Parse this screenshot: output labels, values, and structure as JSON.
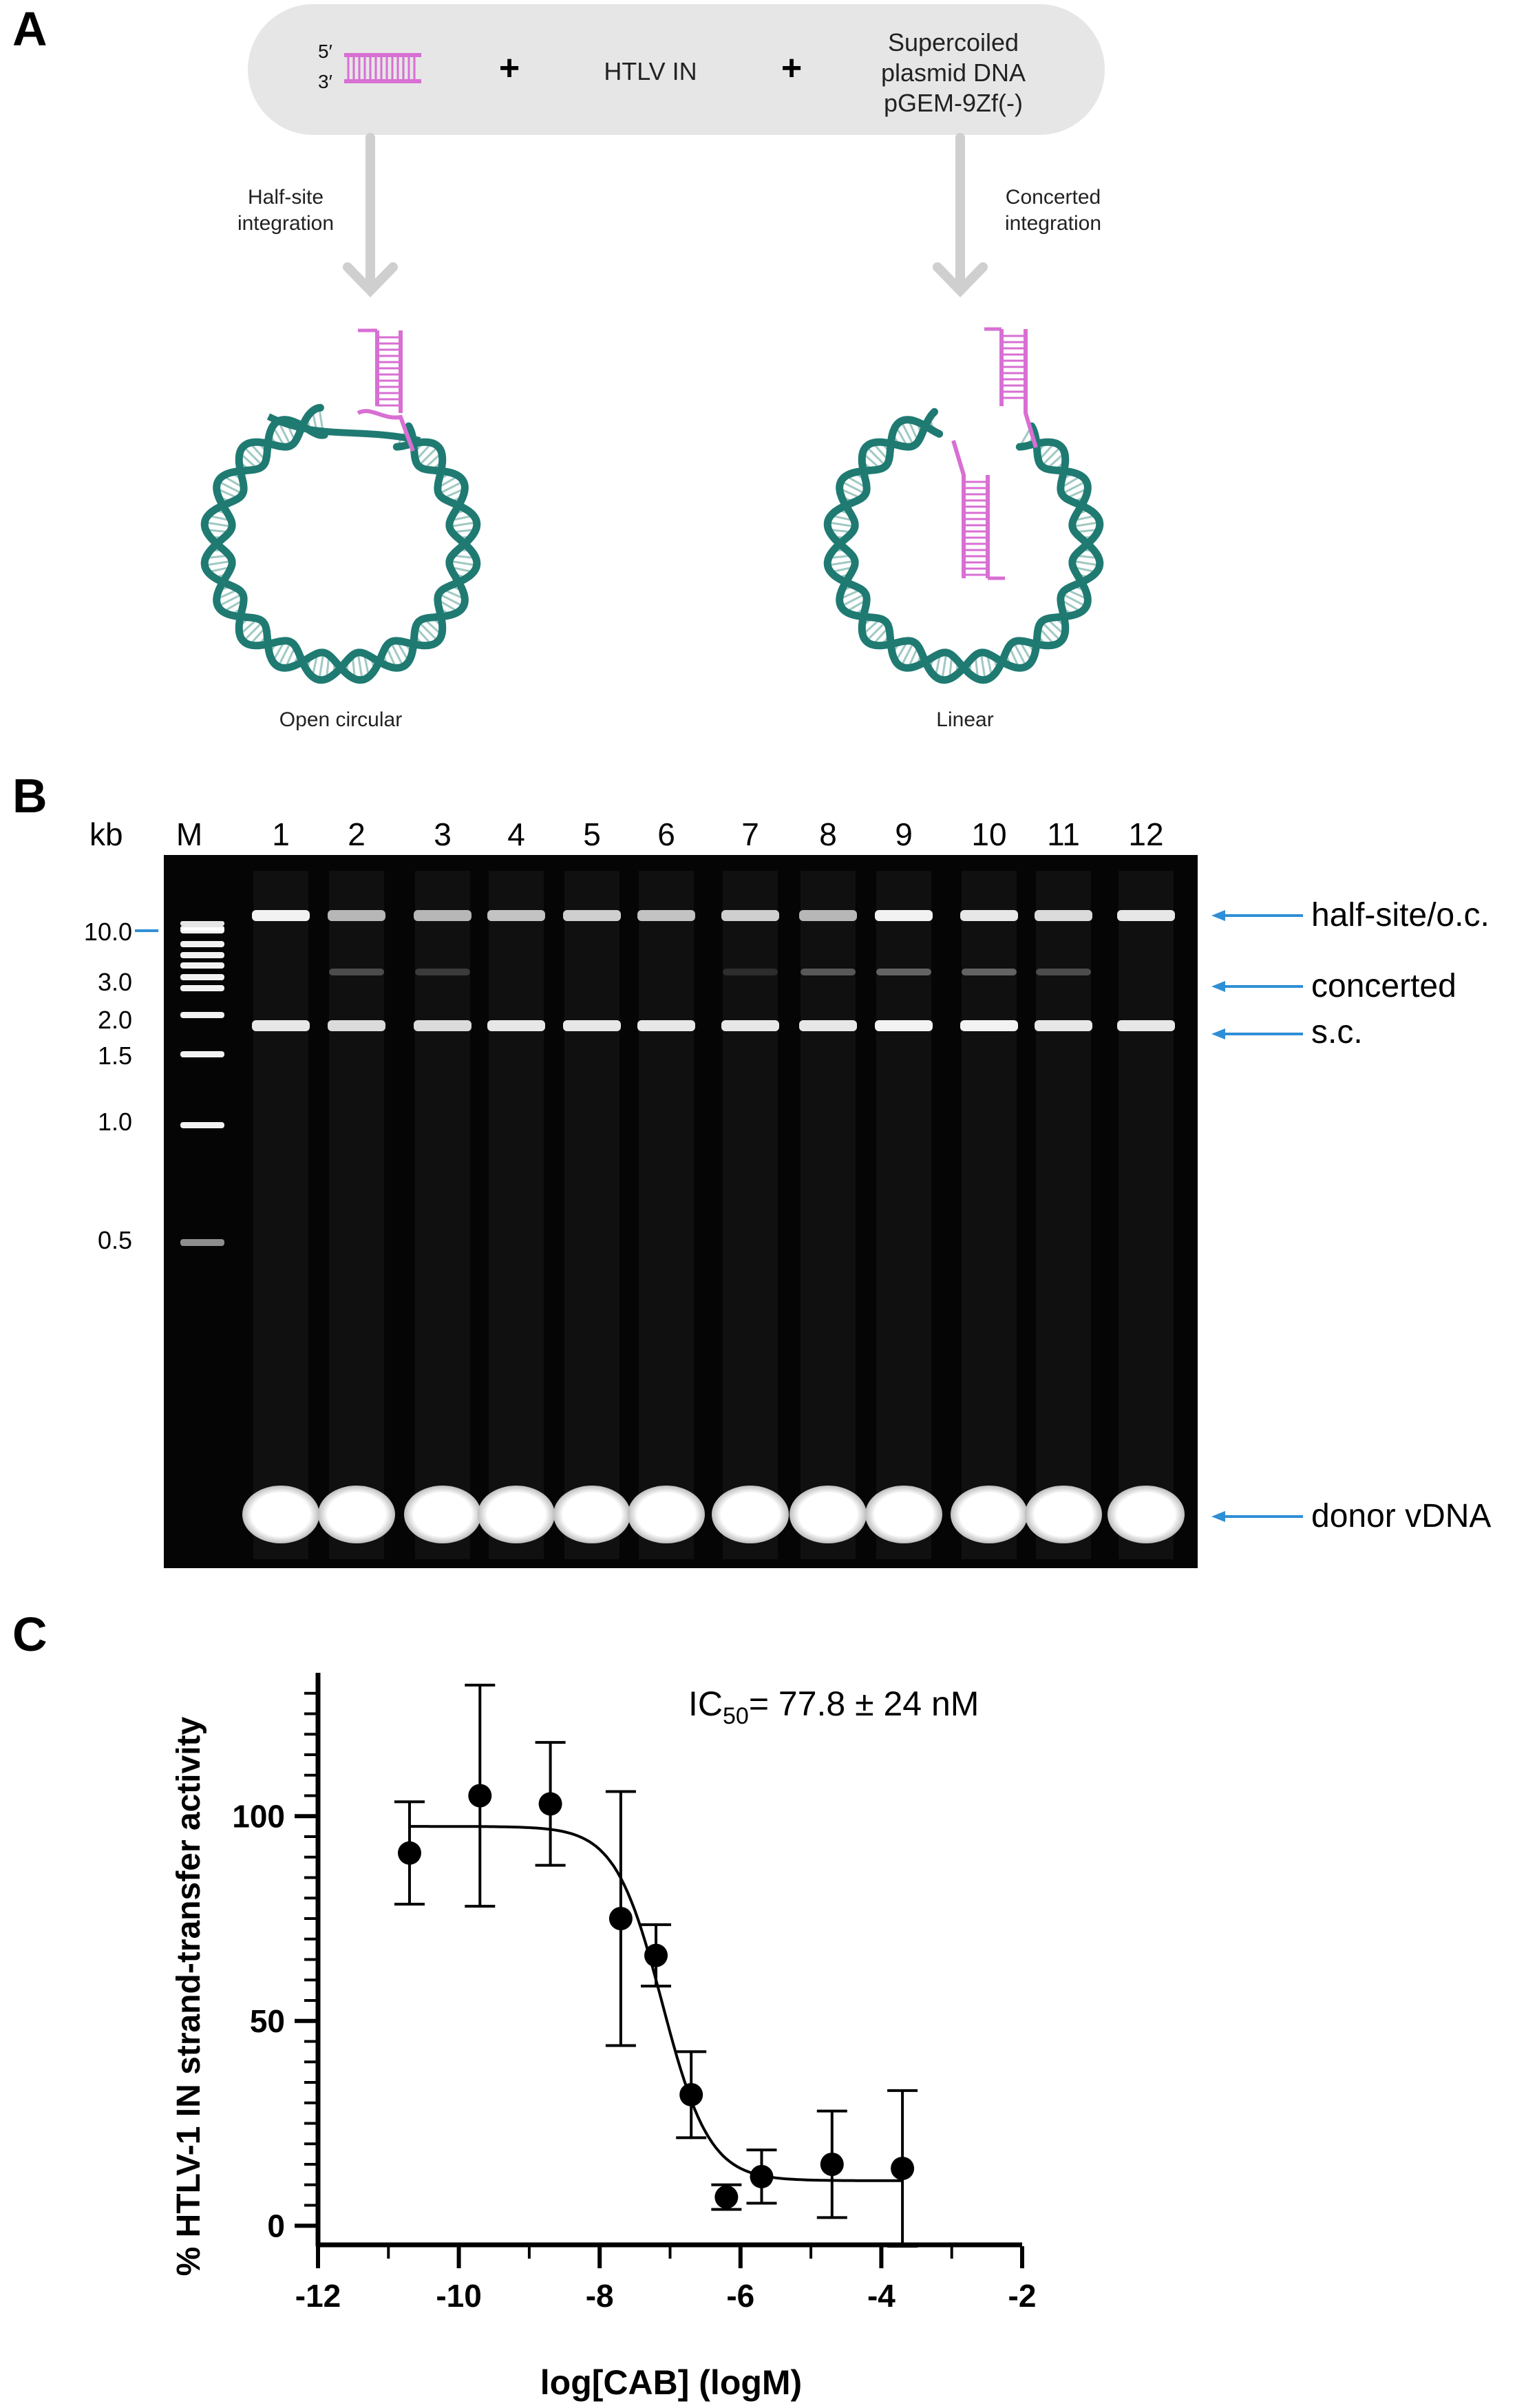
{
  "panel_a": {
    "letter": "A",
    "strand_5": "5′",
    "strand_3": "3′",
    "plus": "+",
    "enzyme": "HTLV IN",
    "plasmid_line1": "Supercoiled",
    "plasmid_line2": "plasmid DNA",
    "plasmid_line3": "pGEM-9Zf(-)",
    "left_arrow_line1": "Half-site",
    "left_arrow_line2": "integration",
    "right_arrow_line1": "Concerted",
    "right_arrow_line2": "integration",
    "left_product": "Open circular",
    "right_product": "Linear",
    "colors": {
      "dna": "#1f7a72",
      "donor": "#d86fd3",
      "box": "#e6e6e6",
      "arrow": "#cfcfcf"
    }
  },
  "panel_b": {
    "letter": "B",
    "kb_label": "kb",
    "marker_lane": "M",
    "lanes": [
      "1",
      "2",
      "3",
      "4",
      "5",
      "6",
      "7",
      "8",
      "9",
      "10",
      "11",
      "12"
    ],
    "ladder_sizes": [
      "10.0",
      "3.0",
      "2.0",
      "1.5",
      "1.0",
      "0.5"
    ],
    "band_labels": {
      "half_site": "half-site/o.c.",
      "concerted": "concerted",
      "sc": "s.c.",
      "donor": "donor vDNA"
    },
    "colors": {
      "gel": "#050505",
      "band": "#ffffff",
      "pointer": "#2f8fd6"
    }
  },
  "chart_data": {
    "type": "scatter",
    "panel_letter": "C",
    "annotation_prefix": "IC",
    "annotation_sub": "50",
    "annotation_rest": "= 77.8 ± 24 nM",
    "xlabel": "log[CAB] (logM)",
    "ylabel": "% HTLV-1 IN strand-transfer activity",
    "xlim": [
      -12,
      -2
    ],
    "ylim": [
      -5,
      135
    ],
    "xticks": [
      -12,
      -10,
      -8,
      -6,
      -4,
      -2
    ],
    "yticks": [
      0,
      50,
      100
    ],
    "x": [
      -10.7,
      -9.7,
      -8.7,
      -7.7,
      -7.2,
      -6.7,
      -6.2,
      -5.7,
      -4.7,
      -3.7
    ],
    "y": [
      91,
      105,
      103,
      75,
      66,
      32,
      7,
      12,
      15,
      14
    ],
    "yerr": [
      12.5,
      27,
      15,
      31,
      7.5,
      10.5,
      3,
      6.5,
      13,
      19
    ],
    "fit": {
      "top": 97.5,
      "bottom": 11,
      "logIC50": -7.11,
      "hill": -1.3
    }
  }
}
